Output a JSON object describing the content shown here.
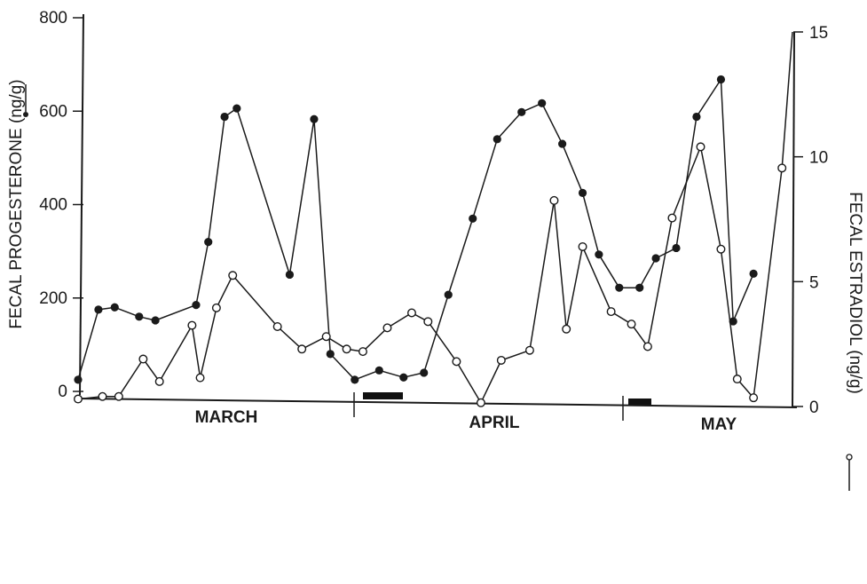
{
  "chart_data": {
    "type": "line",
    "title": "",
    "ylabel": "FECAL PROGESTERONE (ng/g)",
    "y2label": "FECAL ESTRADIOL (ng/g)",
    "ylim": [
      0,
      800
    ],
    "y2lim": [
      0,
      15
    ],
    "yticks": [
      "0",
      "200",
      "400",
      "600",
      "800"
    ],
    "y2ticks": [
      "0",
      "5",
      "10",
      "15"
    ],
    "x_period": [
      "MARCH",
      "APRIL",
      "MAY"
    ],
    "series": [
      {
        "marker": "filled-circle",
        "axis": "left",
        "x": [
          0.0,
          2.5,
          4.5,
          7.5,
          9.5,
          14.5,
          16.0,
          18.0,
          19.5,
          26.0,
          29.0,
          31.0,
          34.0,
          37.0,
          40.0,
          42.5,
          45.5,
          48.5,
          51.5,
          54.5,
          57.0,
          59.5,
          62.0,
          64.0,
          66.5,
          69.0,
          71.0,
          73.5,
          76.0,
          79.0,
          80.5,
          83.0
        ],
        "y": [
          25,
          175,
          180,
          160,
          152,
          185,
          320,
          588,
          606,
          250,
          583,
          80,
          25,
          45,
          30,
          40,
          207,
          370,
          540,
          598,
          617,
          530,
          425,
          293,
          222,
          222,
          285,
          307,
          588,
          668,
          150,
          252
        ]
      },
      {
        "marker": "open-circle",
        "axis": "right",
        "x": [
          0.0,
          3.0,
          5.0,
          8.0,
          10.0,
          14.0,
          15.0,
          17.0,
          19.0,
          24.5,
          27.5,
          30.5,
          33.0,
          35.0,
          38.0,
          41.0,
          43.0,
          46.5,
          49.5,
          52.0,
          55.5,
          58.5,
          60.0,
          62.0,
          65.5,
          68.0,
          70.0,
          73.0,
          76.5,
          79.0,
          81.0,
          83.0,
          86.5
        ],
        "y": [
          0.3,
          0.4,
          0.4,
          1.9,
          1.0,
          3.25,
          1.15,
          3.95,
          5.25,
          3.2,
          2.3,
          2.8,
          2.3,
          2.2,
          3.15,
          3.75,
          3.4,
          1.8,
          0.15,
          1.85,
          2.25,
          8.25,
          3.1,
          6.4,
          3.8,
          3.3,
          2.4,
          7.55,
          10.4,
          6.3,
          1.1,
          0.35,
          9.55
        ]
      }
    ]
  }
}
